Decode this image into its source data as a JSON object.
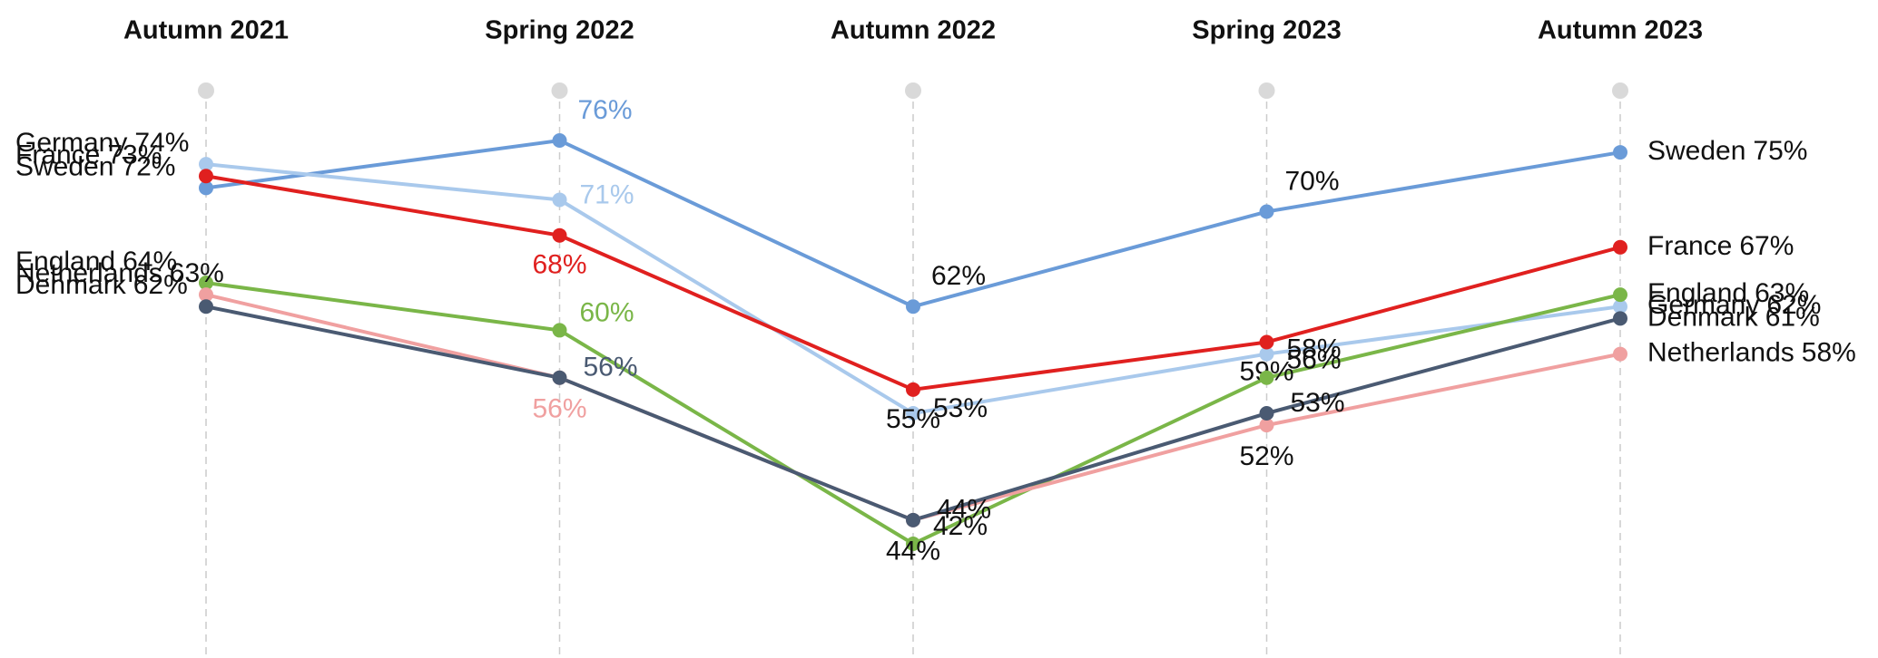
{
  "chart_data": {
    "type": "line",
    "categories": [
      "Autumn 2021",
      "Spring 2022",
      "Autumn 2022",
      "Spring 2023",
      "Autumn 2023"
    ],
    "series": [
      {
        "name": "Sweden",
        "color": "#6a9bd8",
        "values": [
          72,
          76,
          62,
          70,
          75
        ],
        "value_labels": [
          "72%",
          "76%",
          "62%",
          "70%",
          "75%"
        ]
      },
      {
        "name": "Germany",
        "color": "#a9c9ec",
        "values": [
          74,
          71,
          53,
          58,
          62
        ],
        "value_labels": [
          "74%",
          "71%",
          "53%",
          "58%",
          "62%"
        ]
      },
      {
        "name": "France",
        "color": "#e0201f",
        "values": [
          73,
          68,
          55,
          59,
          67
        ],
        "value_labels": [
          "73%",
          "68%",
          "55%",
          "59%",
          "67%"
        ]
      },
      {
        "name": "England",
        "color": "#7ab648",
        "values": [
          64,
          60,
          42,
          56,
          63
        ],
        "value_labels": [
          "64%",
          "60%",
          "42%",
          "56%",
          "63%"
        ]
      },
      {
        "name": "Netherlands",
        "color": "#f0a0a0",
        "values": [
          63,
          56,
          44,
          52,
          58
        ],
        "value_labels": [
          "63%",
          "56%",
          "44%",
          "52%",
          "58%"
        ]
      },
      {
        "name": "Denmark",
        "color": "#4a5a72",
        "values": [
          62,
          56,
          44,
          53,
          61
        ],
        "value_labels": [
          "62%",
          "56%",
          "44%",
          "53%",
          "61%"
        ]
      }
    ]
  }
}
